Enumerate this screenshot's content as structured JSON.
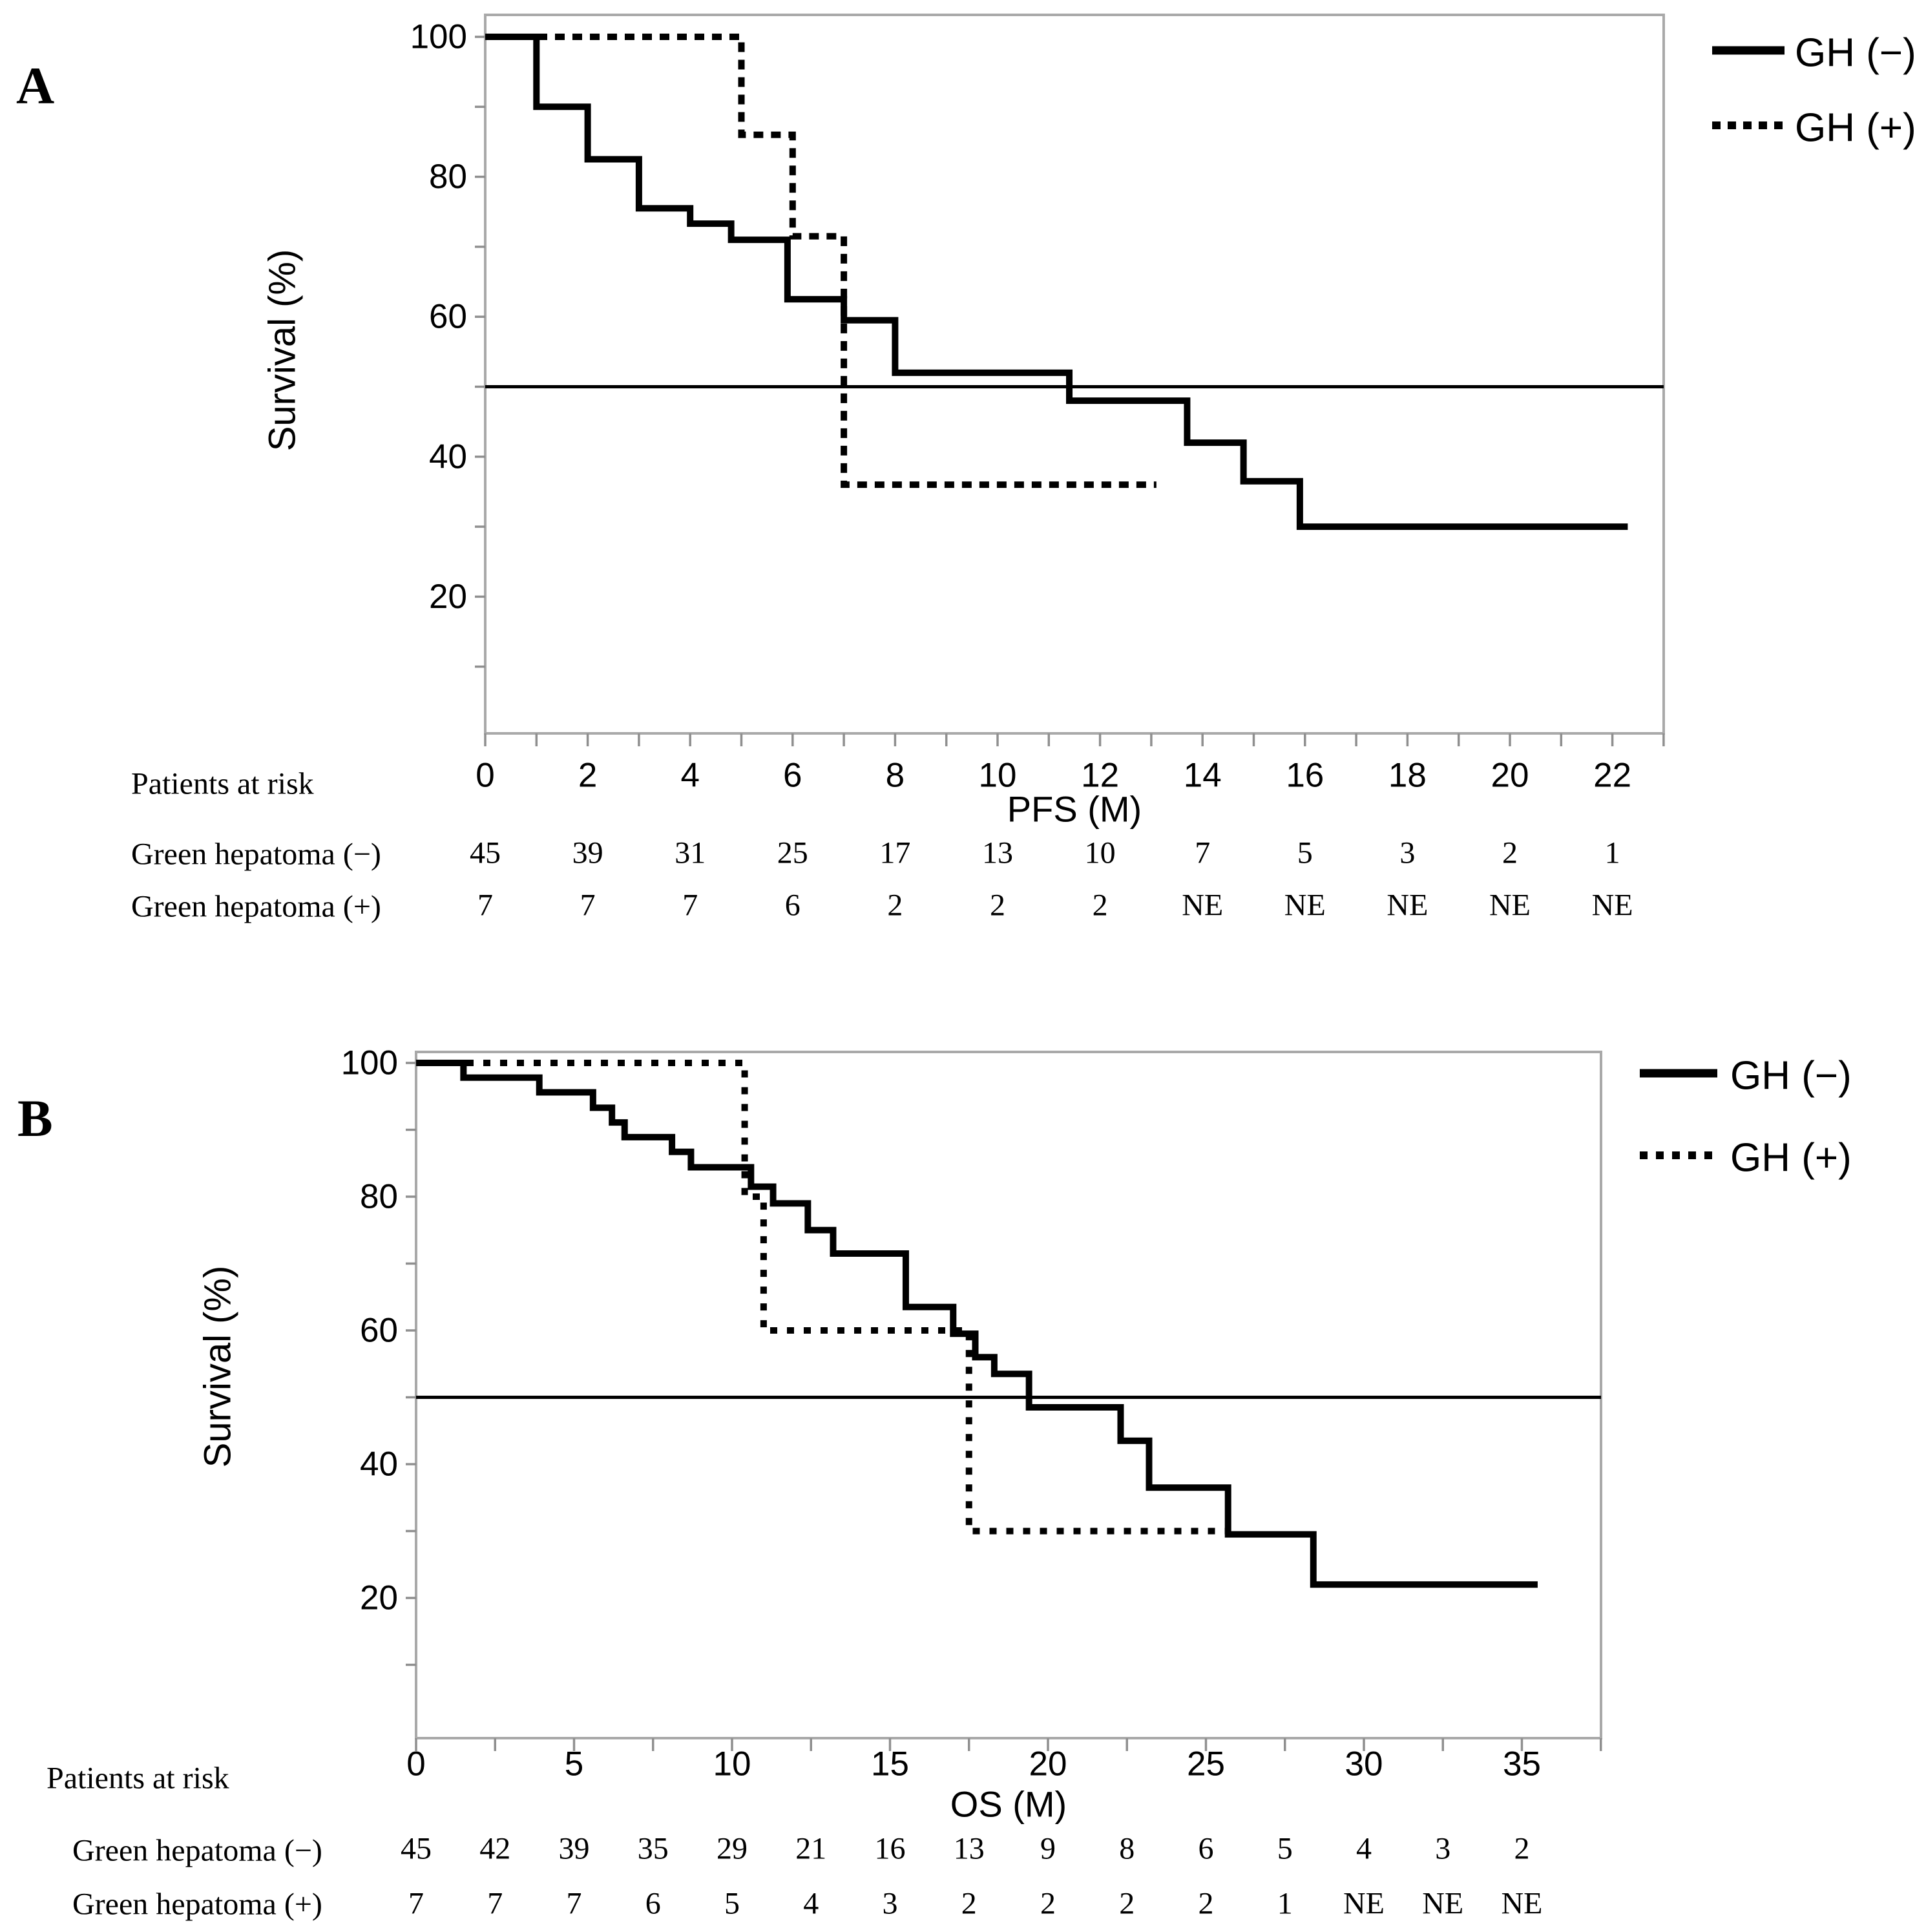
{
  "chart_data": [
    {
      "type": "line",
      "subtype": "kaplan-meier-step",
      "panel_label": "A",
      "xlabel": "PFS (M)",
      "ylabel": "Survival (%)",
      "xlim": [
        0,
        23
      ],
      "ylim": [
        0,
        100
      ],
      "xticks": [
        0,
        2,
        4,
        6,
        8,
        10,
        12,
        14,
        16,
        18,
        20,
        22
      ],
      "yticks": [
        100,
        80,
        60,
        40,
        20
      ],
      "minor_yticks": [
        90,
        70,
        50,
        30,
        10
      ],
      "grid": false,
      "reference_line_y": 50,
      "legend_position": "top-right",
      "line_color": "#000000",
      "series": [
        {
          "name": "GH (−)",
          "style": "solid",
          "steps": [
            [
              0,
              100
            ],
            [
              1,
              90
            ],
            [
              2,
              82.5
            ],
            [
              3,
              75.5
            ],
            [
              4,
              73.3
            ],
            [
              4.8,
              71
            ],
            [
              5.9,
              62.5
            ],
            [
              7,
              59.5
            ],
            [
              8,
              52
            ],
            [
              11.4,
              48
            ],
            [
              13.7,
              42
            ],
            [
              14.8,
              36.5
            ],
            [
              15.9,
              30
            ]
          ],
          "x_end": 22.3
        },
        {
          "name": "GH (+)",
          "style": "dotted",
          "steps": [
            [
              0,
              100
            ],
            [
              5,
              86
            ],
            [
              6,
              71.5
            ],
            [
              7,
              36
            ]
          ],
          "x_end": 13.1
        }
      ],
      "legend": [
        {
          "label": "GH (−)",
          "style": "solid"
        },
        {
          "label": "GH (+)",
          "style": "dotted"
        }
      ],
      "risk_table": {
        "title": "Patients at risk",
        "time_points": [
          0,
          2,
          4,
          6,
          8,
          10,
          12,
          14,
          16,
          18,
          20,
          22
        ],
        "rows": [
          {
            "label": "Green hepatoma (−)",
            "values": [
              "45",
              "39",
              "31",
              "25",
              "17",
              "13",
              "10",
              "7",
              "5",
              "3",
              "2",
              "1"
            ]
          },
          {
            "label": "Green hepatoma (+)",
            "values": [
              "7",
              "7",
              "7",
              "6",
              "2",
              "2",
              "2",
              "NE",
              "NE",
              "NE",
              "NE",
              "NE"
            ]
          }
        ]
      }
    },
    {
      "type": "line",
      "subtype": "kaplan-meier-step",
      "panel_label": "B",
      "xlabel": "OS (M)",
      "ylabel": "Survival (%)",
      "xlim": [
        0,
        37.5
      ],
      "ylim": [
        0,
        100
      ],
      "xticks": [
        0,
        5,
        10,
        15,
        20,
        25,
        30,
        35
      ],
      "yticks": [
        100,
        80,
        60,
        40,
        20
      ],
      "minor_yticks": [
        90,
        70,
        50,
        30,
        10
      ],
      "grid": false,
      "reference_line_y": 50,
      "legend_position": "top-right",
      "line_color": "#000000",
      "series": [
        {
          "name": "GH (−)",
          "style": "solid",
          "steps": [
            [
              0,
              100
            ],
            [
              1.5,
              97.8
            ],
            [
              3.9,
              95.6
            ],
            [
              5.6,
              93.3
            ],
            [
              6.2,
              91.1
            ],
            [
              6.6,
              88.9
            ],
            [
              8.1,
              86.7
            ],
            [
              8.7,
              84.4
            ],
            [
              10.6,
              81.5
            ],
            [
              11.3,
              79
            ],
            [
              12.4,
              75
            ],
            [
              13.2,
              71.5
            ],
            [
              15.5,
              63.5
            ],
            [
              17,
              59.5
            ],
            [
              17.7,
              56
            ],
            [
              18.3,
              53.5
            ],
            [
              19.4,
              48.5
            ],
            [
              22.3,
              43.5
            ],
            [
              23.2,
              36.5
            ],
            [
              25.7,
              29.5
            ],
            [
              28.4,
              22
            ]
          ],
          "x_end": 35.5
        },
        {
          "name": "GH (+)",
          "style": "dotted",
          "steps": [
            [
              0,
              100
            ],
            [
              10.4,
              80
            ],
            [
              11,
              60
            ],
            [
              17.5,
              30
            ]
          ],
          "x_end": 25.6
        }
      ],
      "legend": [
        {
          "label": "GH (−)",
          "style": "solid"
        },
        {
          "label": "GH (+)",
          "style": "dotted"
        }
      ],
      "risk_table": {
        "title": "Patients at risk",
        "time_points": [
          0,
          2.5,
          5,
          7.5,
          10,
          12.5,
          15,
          17.5,
          20,
          22.5,
          25,
          27.5,
          30,
          32.5,
          35
        ],
        "rows": [
          {
            "label": "Green hepatoma (−)",
            "values": [
              "45",
              "42",
              "39",
              "35",
              "29",
              "21",
              "16",
              "13",
              "9",
              "8",
              "6",
              "5",
              "4",
              "3",
              "2"
            ]
          },
          {
            "label": "Green hepatoma (+)",
            "values": [
              "7",
              "7",
              "7",
              "6",
              "5",
              "4",
              "3",
              "2",
              "2",
              "2",
              "2",
              "1",
              "NE",
              "NE",
              "NE"
            ]
          }
        ]
      }
    }
  ]
}
